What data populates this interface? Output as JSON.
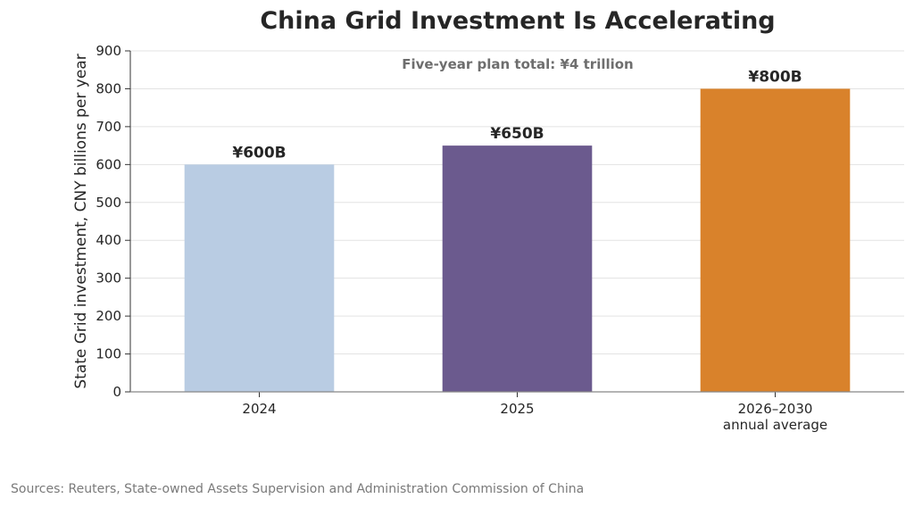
{
  "chart_data": {
    "type": "bar",
    "title": "China Grid Investment Is Accelerating",
    "ylabel": "State Grid investment, CNY billions per year",
    "xlabel": "",
    "ylim": [
      0,
      900
    ],
    "yticks": [
      0,
      100,
      200,
      300,
      400,
      500,
      600,
      700,
      800,
      900
    ],
    "grid": true,
    "categories": [
      [
        "2024"
      ],
      [
        "2025"
      ],
      [
        "2026–2030",
        "annual average"
      ]
    ],
    "values": [
      600,
      650,
      800
    ],
    "value_labels": [
      "¥600B",
      "¥650B",
      "¥800B"
    ],
    "colors": [
      "#b9cce3",
      "#6b5a8e",
      "#d9822b"
    ],
    "annotation": "Five-year plan total: ¥4 trillion"
  },
  "source": "Sources: Reuters, State-owned Assets Supervision and Administration Commission of China"
}
